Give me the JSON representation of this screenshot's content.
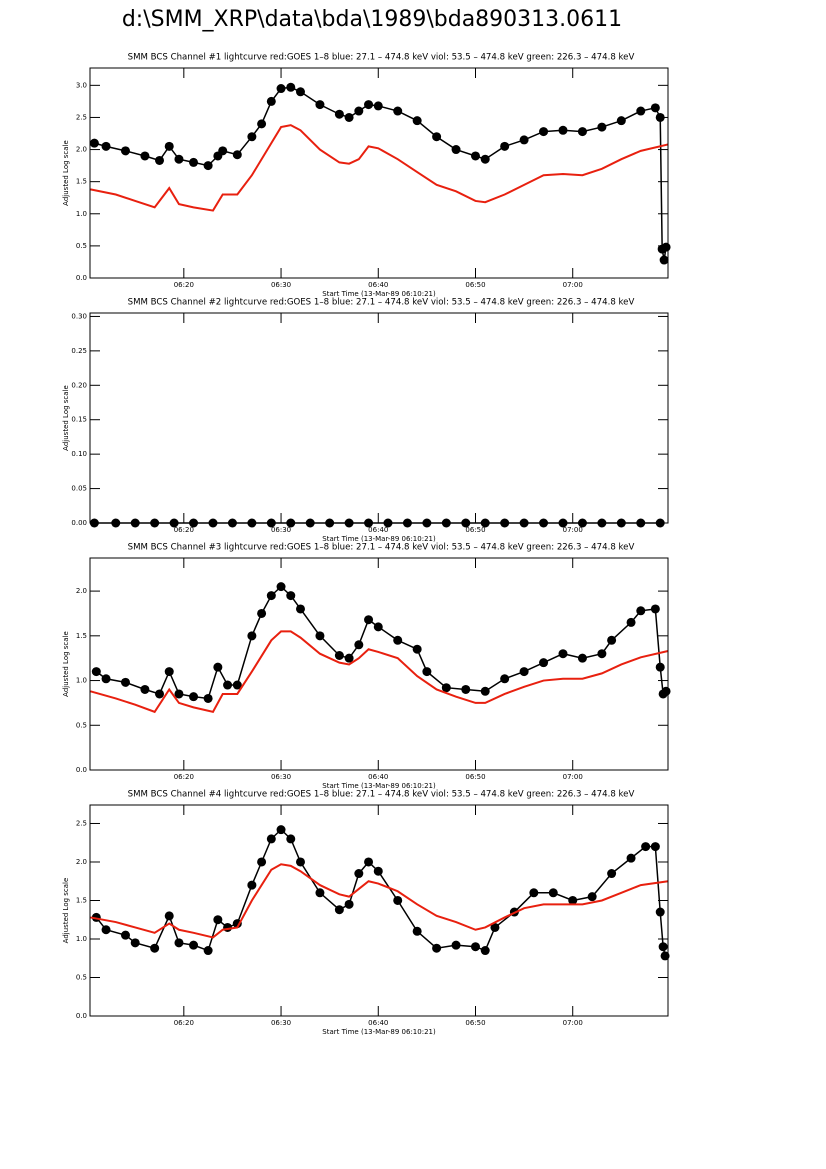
{
  "title": "d:\\SMM_XRP\\data\\bda\\1989\\bda890313.0611",
  "chart_data": [
    {
      "type": "line",
      "title": "SMM BCS Channel #1 lightcurve  red:GOES 1–8  blue: 27.1 – 474.8 keV  viol: 53.5 – 474.8 keV  green: 226.3 – 474.8 keV",
      "x_label": "Start Time (13-Mar-89 06:10:21)",
      "y_label": "Adjusted Log scale",
      "xlim": [
        10.35,
        69.8
      ],
      "xticks": [
        {
          "value": 20,
          "label": "06:20"
        },
        {
          "value": 30,
          "label": "06:30"
        },
        {
          "value": 40,
          "label": "06:40"
        },
        {
          "value": 50,
          "label": "06:50"
        },
        {
          "value": 60,
          "label": "07:00"
        }
      ],
      "ylim": [
        0,
        3.27
      ],
      "yticks": [
        {
          "value": 0,
          "label": "0.0"
        },
        0.5,
        {
          "value": 1,
          "label": "1.0"
        },
        1.5,
        {
          "value": 2,
          "label": "2.0"
        },
        2.5,
        {
          "value": 3,
          "label": "3.0"
        }
      ],
      "series": [
        {
          "color": "#000000",
          "markers": true,
          "x": [
            10.8,
            12,
            14,
            16,
            17.5,
            18.5,
            19.5,
            21,
            22.5,
            23.5,
            24,
            25.5,
            27,
            28,
            29,
            30,
            31,
            32,
            34,
            36,
            37,
            38,
            39,
            40,
            42,
            44,
            46,
            48,
            50,
            51,
            53,
            55,
            57,
            59,
            61,
            63,
            65,
            67,
            68.5,
            69,
            69.2,
            69.4,
            69.6
          ],
          "values": [
            2.1,
            2.05,
            1.98,
            1.9,
            1.83,
            2.05,
            1.85,
            1.8,
            1.75,
            1.9,
            1.98,
            1.92,
            2.2,
            2.4,
            2.75,
            2.95,
            2.97,
            2.9,
            2.7,
            2.55,
            2.5,
            2.6,
            2.7,
            2.68,
            2.6,
            2.45,
            2.2,
            2.0,
            1.9,
            1.85,
            2.05,
            2.15,
            2.28,
            2.3,
            2.28,
            2.35,
            2.45,
            2.6,
            2.65,
            2.5,
            0.45,
            0.28,
            0.48
          ]
        },
        {
          "color": "#e8200f",
          "markers": false,
          "x": [
            10.4,
            13,
            15,
            17,
            18.5,
            19.5,
            21,
            23,
            24,
            25.5,
            27,
            29,
            30,
            31,
            32,
            34,
            36,
            37,
            38,
            39,
            40,
            42,
            44,
            46,
            48,
            50,
            51,
            53,
            55,
            57,
            59,
            61,
            63,
            65,
            67,
            69.8
          ],
          "values": [
            1.38,
            1.3,
            1.2,
            1.1,
            1.4,
            1.15,
            1.1,
            1.05,
            1.3,
            1.3,
            1.6,
            2.1,
            2.35,
            2.38,
            2.3,
            2.0,
            1.8,
            1.78,
            1.85,
            2.05,
            2.02,
            1.85,
            1.65,
            1.45,
            1.35,
            1.2,
            1.18,
            1.3,
            1.45,
            1.6,
            1.62,
            1.6,
            1.7,
            1.85,
            1.98,
            2.08
          ]
        }
      ]
    },
    {
      "type": "line",
      "title": "SMM BCS Channel #2 lightcurve  red:GOES 1–8  blue: 27.1 – 474.8 keV  viol: 53.5 – 474.8 keV  green: 226.3 – 474.8 keV",
      "x_label": "Start Time (13-Mar-89 06:10:21)",
      "y_label": "Adjusted Log scale",
      "xlim": [
        10.35,
        69.8
      ],
      "xticks": [
        {
          "value": 20,
          "label": "06:20"
        },
        {
          "value": 30,
          "label": "06:30"
        },
        {
          "value": 40,
          "label": "06:40"
        },
        {
          "value": 50,
          "label": "06:50"
        },
        {
          "value": 60,
          "label": "07:00"
        }
      ],
      "ylim": [
        0,
        0.305
      ],
      "yticks": [
        {
          "value": 0,
          "label": "0.00"
        },
        0.05,
        {
          "value": 0.1,
          "label": "0.10"
        },
        0.15,
        {
          "value": 0.2,
          "label": "0.20"
        },
        0.25,
        {
          "value": 0.3,
          "label": "0.30"
        }
      ],
      "series": [
        {
          "color": "#000000",
          "markers": true,
          "x": [
            10.8,
            13,
            15,
            17,
            19,
            21,
            23,
            25,
            27,
            29,
            31,
            33,
            35,
            37,
            39,
            41,
            43,
            45,
            47,
            49,
            51,
            53,
            55,
            57,
            59,
            61,
            63,
            65,
            67,
            69
          ],
          "values": [
            0,
            0,
            0,
            0,
            0,
            0,
            0,
            0,
            0,
            0,
            0,
            0,
            0,
            0,
            0,
            0,
            0,
            0,
            0,
            0,
            0,
            0,
            0,
            0,
            0,
            0,
            0,
            0,
            0,
            0
          ]
        }
      ]
    },
    {
      "type": "line",
      "title": "SMM BCS Channel #3 lightcurve  red:GOES 1–8  blue: 27.1 – 474.8 keV  viol: 53.5 – 474.8 keV  green: 226.3 – 474.8 keV",
      "x_label": "Start Time (13-Mar-89 06:10:21)",
      "y_label": "Adjusted Log scale",
      "xlim": [
        10.35,
        69.8
      ],
      "xticks": [
        {
          "value": 20,
          "label": "06:20"
        },
        {
          "value": 30,
          "label": "06:30"
        },
        {
          "value": 40,
          "label": "06:40"
        },
        {
          "value": 50,
          "label": "06:50"
        },
        {
          "value": 60,
          "label": "07:00"
        }
      ],
      "ylim": [
        0,
        2.37
      ],
      "yticks": [
        {
          "value": 0,
          "label": "0.0"
        },
        0.5,
        {
          "value": 1,
          "label": "1.0"
        },
        1.5,
        {
          "value": 2,
          "label": "2.0"
        }
      ],
      "series": [
        {
          "color": "#000000",
          "markers": true,
          "x": [
            11,
            12,
            14,
            16,
            17.5,
            18.5,
            19.5,
            21,
            22.5,
            23.5,
            24.5,
            25.5,
            27,
            28,
            29,
            30,
            31,
            32,
            34,
            36,
            37,
            38,
            39,
            40,
            42,
            44,
            45,
            47,
            49,
            51,
            53,
            55,
            57,
            59,
            61,
            63,
            64,
            66,
            67,
            68.5,
            69,
            69.3,
            69.6
          ],
          "values": [
            1.1,
            1.02,
            0.98,
            0.9,
            0.85,
            1.1,
            0.85,
            0.82,
            0.8,
            1.15,
            0.95,
            0.95,
            1.5,
            1.75,
            1.95,
            2.05,
            1.95,
            1.8,
            1.5,
            1.28,
            1.25,
            1.4,
            1.68,
            1.6,
            1.45,
            1.35,
            1.1,
            0.92,
            0.9,
            0.88,
            1.02,
            1.1,
            1.2,
            1.3,
            1.25,
            1.3,
            1.45,
            1.65,
            1.78,
            1.8,
            1.15,
            0.85,
            0.88
          ]
        },
        {
          "color": "#e8200f",
          "markers": false,
          "x": [
            10.4,
            13,
            15,
            17,
            18.5,
            19.5,
            21,
            23,
            24,
            25.5,
            27,
            29,
            30,
            31,
            32,
            34,
            36,
            37,
            38,
            39,
            40,
            42,
            44,
            46,
            48,
            50,
            51,
            53,
            55,
            57,
            59,
            61,
            63,
            65,
            67,
            69.8
          ],
          "values": [
            0.88,
            0.8,
            0.73,
            0.65,
            0.9,
            0.75,
            0.7,
            0.65,
            0.85,
            0.85,
            1.1,
            1.45,
            1.55,
            1.55,
            1.48,
            1.3,
            1.2,
            1.18,
            1.25,
            1.35,
            1.32,
            1.25,
            1.05,
            0.9,
            0.82,
            0.75,
            0.75,
            0.85,
            0.93,
            1.0,
            1.02,
            1.02,
            1.08,
            1.18,
            1.26,
            1.33
          ]
        }
      ]
    },
    {
      "type": "line",
      "title": "SMM BCS Channel #4 lightcurve  red:GOES 1–8  blue: 27.1 – 474.8 keV  viol: 53.5 – 474.8 keV  green: 226.3 – 474.8 keV",
      "x_label": "Start Time (13-Mar-89 06:10:21)",
      "y_label": "Adjusted Log scale",
      "xlim": [
        10.35,
        69.8
      ],
      "xticks": [
        {
          "value": 20,
          "label": "06:20"
        },
        {
          "value": 30,
          "label": "06:30"
        },
        {
          "value": 40,
          "label": "06:40"
        },
        {
          "value": 50,
          "label": "06:50"
        },
        {
          "value": 60,
          "label": "07:00"
        }
      ],
      "ylim": [
        0,
        2.74
      ],
      "yticks": [
        {
          "value": 0,
          "label": "0.0"
        },
        0.5,
        {
          "value": 1,
          "label": "1.0"
        },
        1.5,
        {
          "value": 2,
          "label": "2.0"
        },
        2.5
      ],
      "series": [
        {
          "color": "#000000",
          "markers": true,
          "x": [
            11,
            12,
            14,
            15,
            17,
            18.5,
            19.5,
            21,
            22.5,
            23.5,
            24.5,
            25.5,
            27,
            28,
            29,
            30,
            31,
            32,
            34,
            36,
            37,
            38,
            39,
            40,
            42,
            44,
            46,
            48,
            50,
            51,
            52,
            54,
            56,
            58,
            60,
            62,
            64,
            66,
            67.5,
            68.5,
            69,
            69.3,
            69.5
          ],
          "values": [
            1.28,
            1.12,
            1.05,
            0.95,
            0.88,
            1.3,
            0.95,
            0.92,
            0.85,
            1.25,
            1.15,
            1.2,
            1.7,
            2.0,
            2.3,
            2.42,
            2.3,
            2.0,
            1.6,
            1.38,
            1.45,
            1.85,
            2.0,
            1.88,
            1.5,
            1.1,
            0.88,
            0.92,
            0.9,
            0.85,
            1.15,
            1.35,
            1.6,
            1.6,
            1.5,
            1.55,
            1.85,
            2.05,
            2.2,
            2.2,
            1.35,
            0.9,
            0.78
          ]
        },
        {
          "color": "#e8200f",
          "markers": false,
          "x": [
            10.4,
            13,
            15,
            17,
            18.5,
            19.5,
            21,
            23,
            24,
            25.5,
            27,
            29,
            30,
            31,
            32,
            34,
            36,
            37,
            38,
            39,
            40,
            42,
            44,
            46,
            48,
            50,
            51,
            53,
            55,
            57,
            59,
            61,
            63,
            65,
            67,
            69.8
          ],
          "values": [
            1.28,
            1.22,
            1.15,
            1.08,
            1.2,
            1.12,
            1.08,
            1.02,
            1.12,
            1.15,
            1.5,
            1.9,
            1.97,
            1.95,
            1.88,
            1.7,
            1.58,
            1.55,
            1.65,
            1.75,
            1.72,
            1.62,
            1.45,
            1.3,
            1.22,
            1.12,
            1.15,
            1.28,
            1.4,
            1.45,
            1.45,
            1.45,
            1.5,
            1.6,
            1.7,
            1.75
          ]
        }
      ]
    }
  ]
}
